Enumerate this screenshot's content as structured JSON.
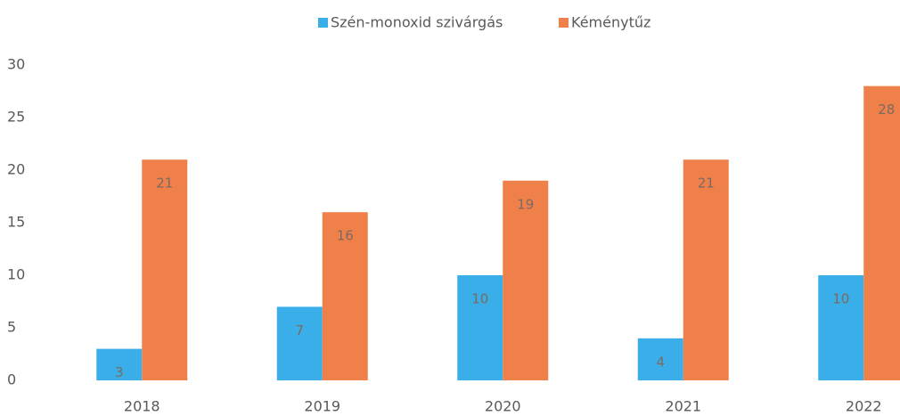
{
  "chart_data": {
    "type": "bar",
    "categories": [
      "2018",
      "2019",
      "2020",
      "2021",
      "2022"
    ],
    "series": [
      {
        "name": "Szén-monoxid szivárgás",
        "color": "#3aaee8",
        "values": [
          3,
          7,
          10,
          4,
          10
        ]
      },
      {
        "name": "Kéménytűz",
        "color": "#f0804a",
        "values": [
          21,
          16,
          19,
          21,
          28
        ]
      }
    ],
    "ylim": [
      0,
      30
    ],
    "yticks": [
      0,
      5,
      10,
      15,
      20,
      25,
      30
    ],
    "grid": false,
    "legend": "top"
  }
}
